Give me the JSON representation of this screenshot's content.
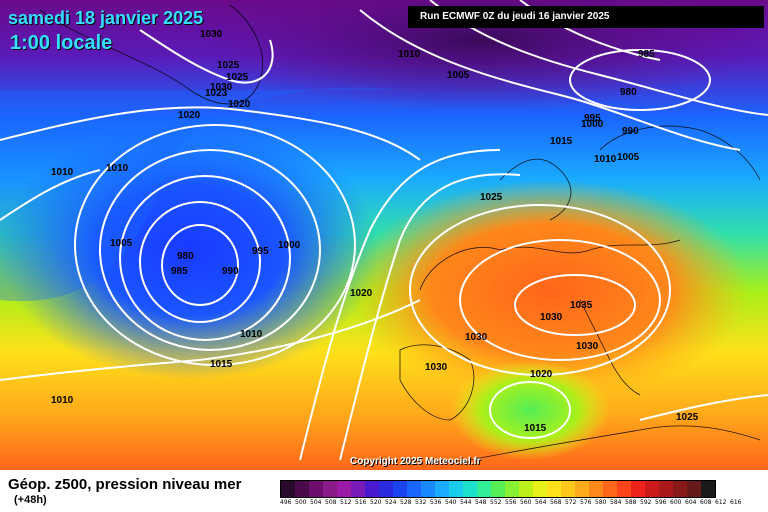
{
  "header": {
    "date": "samedi 18 janvier 2025",
    "time": "1:00 locale",
    "run": "Run ECMWF 0Z du jeudi 16 janvier 2025"
  },
  "copyright": "Copyright 2025 Meteociel.fr",
  "legend": {
    "title": "Géop. z500, pression niveau mer",
    "lead": "(+48h)",
    "values": [
      "496",
      "500",
      "504",
      "508",
      "512",
      "516",
      "520",
      "524",
      "528",
      "532",
      "536",
      "540",
      "544",
      "548",
      "552",
      "556",
      "560",
      "564",
      "568",
      "572",
      "576",
      "580",
      "584",
      "588",
      "592",
      "596",
      "600",
      "604",
      "608",
      "612",
      "616"
    ],
    "colors": [
      "#2a0a2a",
      "#4b0b4b",
      "#6e0d6e",
      "#8b1a8b",
      "#9a1aa6",
      "#7a1ab8",
      "#4a1ad0",
      "#2a2ae0",
      "#1a44f0",
      "#1a66ff",
      "#1a88ff",
      "#1aaaff",
      "#1accee",
      "#1ae0cc",
      "#33ee99",
      "#55ee55",
      "#88f033",
      "#bbf01a",
      "#e8f01a",
      "#ffe01a",
      "#ffc81a",
      "#ffaa1a",
      "#ff881a",
      "#ff661a",
      "#ff441a",
      "#ee221a",
      "#cc1a1a",
      "#aa1a1a",
      "#881a1a",
      "#661a1a",
      "#1a1a1a"
    ]
  },
  "isobar_labels": [
    {
      "text": "1030"
    },
    {
      "text": "1025"
    },
    {
      "text": "1025"
    },
    {
      "text": "1030"
    },
    {
      "text": "1023"
    },
    {
      "text": "1020"
    },
    {
      "text": "1020"
    },
    {
      "text": "1010"
    },
    {
      "text": "1005"
    },
    {
      "text": "985"
    },
    {
      "text": "980"
    },
    {
      "text": "995"
    },
    {
      "text": "1000"
    },
    {
      "text": "990"
    },
    {
      "text": "1015"
    },
    {
      "text": "1010"
    },
    {
      "text": "1005"
    },
    {
      "text": "1010"
    },
    {
      "text": "1010"
    },
    {
      "text": "1025"
    },
    {
      "text": "1005"
    },
    {
      "text": "980"
    },
    {
      "text": "985"
    },
    {
      "text": "990"
    },
    {
      "text": "995"
    },
    {
      "text": "1000"
    },
    {
      "text": "1020"
    },
    {
      "text": "1010"
    },
    {
      "text": "1015"
    },
    {
      "text": "1010"
    },
    {
      "text": "1035"
    },
    {
      "text": "1030"
    },
    {
      "text": "1030"
    },
    {
      "text": "1030"
    },
    {
      "text": "1030"
    },
    {
      "text": "1020"
    },
    {
      "text": "1015"
    },
    {
      "text": "1025"
    }
  ]
}
